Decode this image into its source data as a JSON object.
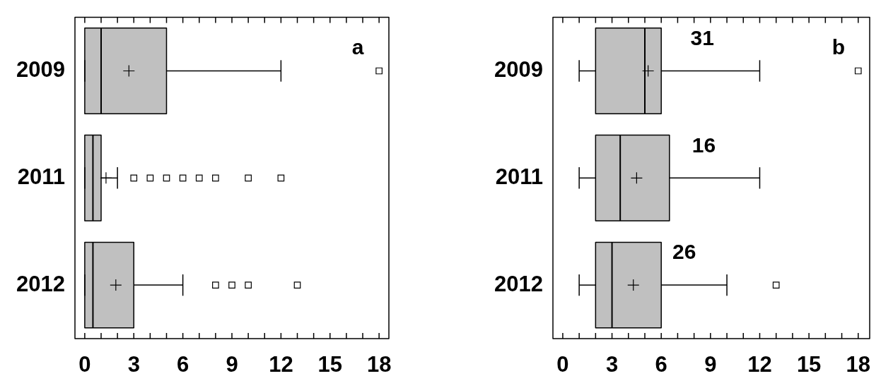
{
  "chart_data": [
    {
      "type": "box",
      "orientation": "horizontal",
      "categories": [
        "2009",
        "2011",
        "2012"
      ],
      "color": "#c0c0c0",
      "boxes": [
        {
          "low": 0,
          "q1": 0,
          "median": 1,
          "q3": 5,
          "high": 12,
          "mean": 2.7,
          "outliers": [
            18
          ]
        },
        {
          "low": 0,
          "q1": 0,
          "median": 0.5,
          "q3": 1,
          "high": 2,
          "mean": 1.3,
          "outliers": [
            3,
            4,
            5,
            6,
            7,
            8,
            10,
            12
          ]
        },
        {
          "low": 0,
          "q1": 0,
          "median": 0.5,
          "q3": 3,
          "high": 6,
          "mean": 1.9,
          "outliers": [
            8,
            9,
            10,
            13
          ]
        }
      ],
      "xlim": [
        -0.6,
        18.6
      ],
      "xticks": [
        0,
        {
          "value": 1,
          "label": null
        },
        {
          "value": 2,
          "label": null
        },
        3,
        {
          "value": 4,
          "label": null
        },
        {
          "value": 5,
          "label": null
        },
        6,
        {
          "value": 7,
          "label": null
        },
        {
          "value": 8,
          "label": null
        },
        9,
        {
          "value": 10,
          "label": null
        },
        {
          "value": 11,
          "label": null
        },
        12,
        {
          "value": 13,
          "label": null
        },
        {
          "value": 14,
          "label": null
        },
        15,
        {
          "value": 16,
          "label": null
        },
        {
          "value": 17,
          "label": null
        },
        18
      ],
      "annotations": [
        "a"
      ]
    },
    {
      "type": "box",
      "orientation": "horizontal",
      "categories": [
        "2009",
        "2011",
        "2012"
      ],
      "color": "#c0c0c0",
      "boxes": [
        {
          "low": 1,
          "q1": 2,
          "median": 5,
          "q3": 6,
          "high": 12,
          "mean": 5.2,
          "outliers": [
            18
          ]
        },
        {
          "low": 1,
          "q1": 2,
          "median": 3.5,
          "q3": 6.5,
          "high": 12,
          "mean": 4.5
        },
        {
          "low": 1,
          "q1": 2,
          "median": 3,
          "q3": 6,
          "high": 10,
          "mean": 4.3,
          "outliers": [
            13
          ]
        }
      ],
      "xlim": [
        -0.6,
        18.7
      ],
      "xticks": [
        0,
        {
          "value": 1,
          "label": null
        },
        {
          "value": 2,
          "label": null
        },
        3,
        {
          "value": 4,
          "label": null
        },
        {
          "value": 5,
          "label": null
        },
        6,
        {
          "value": 7,
          "label": null
        },
        {
          "value": 8,
          "label": null
        },
        9,
        {
          "value": 10,
          "label": null
        },
        {
          "value": 11,
          "label": null
        },
        12,
        {
          "value": 13,
          "label": null
        },
        {
          "value": 14,
          "label": null
        },
        15,
        {
          "value": 16,
          "label": null
        },
        {
          "value": 17,
          "label": null
        },
        18
      ],
      "annotations": [
        "b",
        {
          "text": "31",
          "x": 8.5,
          "y": "2009"
        },
        {
          "text": "16",
          "x": 8.6,
          "y": "2011"
        },
        {
          "text": "26",
          "x": 7.4,
          "y": "2012"
        }
      ]
    }
  ]
}
